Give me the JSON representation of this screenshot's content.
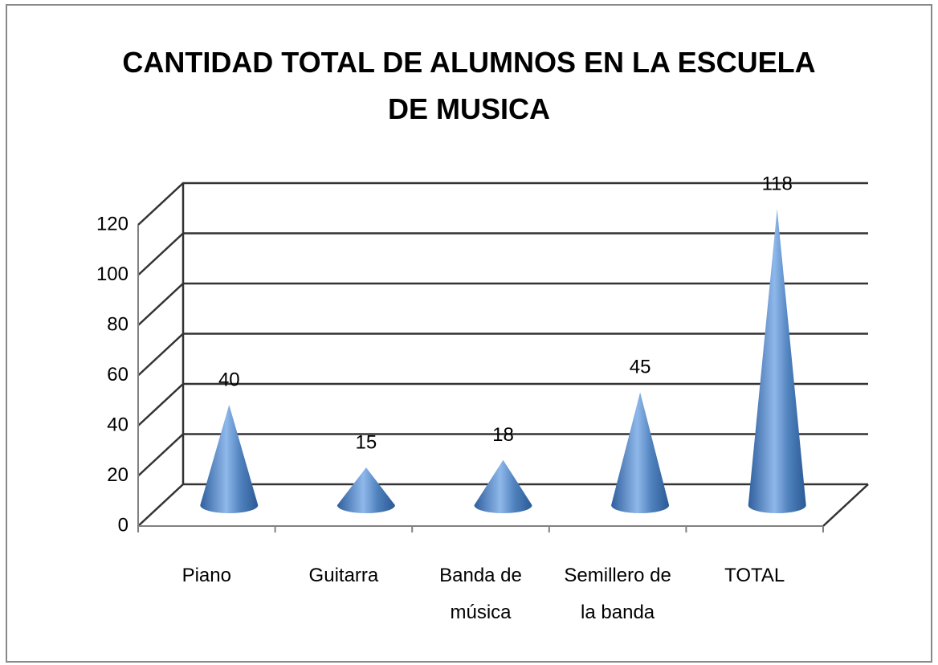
{
  "chart_data": {
    "type": "cone",
    "title": "CANTIDAD TOTAL DE ALUMNOS EN LA ESCUELA DE MUSICA",
    "categories": [
      "Piano",
      "Guitarra",
      "Banda de música",
      "Semillero de la banda",
      "TOTAL"
    ],
    "values": [
      40,
      15,
      18,
      45,
      118
    ],
    "color": "#4f81bd",
    "ylim": [
      0,
      120
    ],
    "yticks": [
      0,
      20,
      40,
      60,
      80,
      100,
      120
    ],
    "grid": true
  }
}
